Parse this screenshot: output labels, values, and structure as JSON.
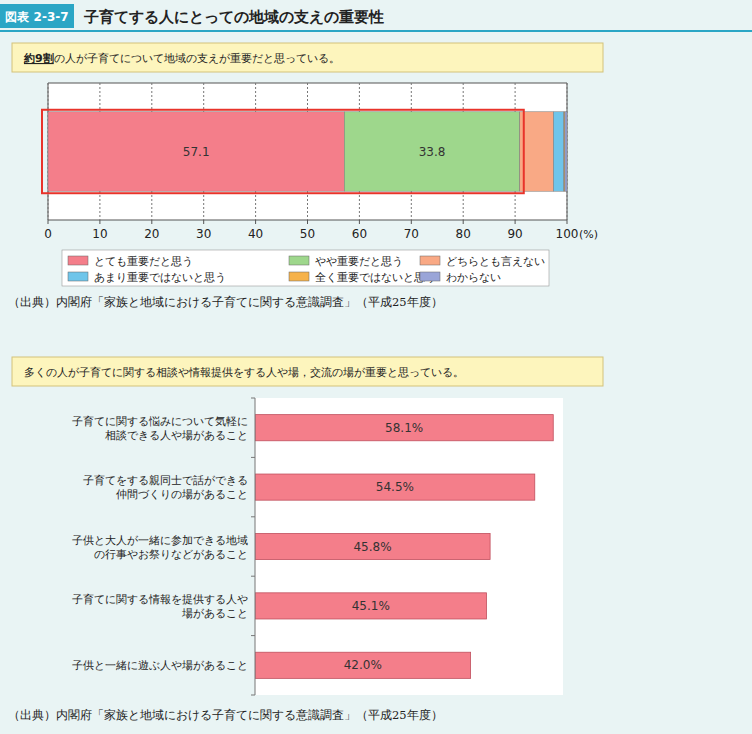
{
  "header": {
    "label": "図表 2-3-7",
    "title": "子育てする人にとっての地域の支えの重要性"
  },
  "chart_data": [
    {
      "type": "bar",
      "orientation": "horizontal",
      "stacked": true,
      "subtitle": "約9割の人が子育てについて地域の支えが重要だと思っている。",
      "categories": [
        null
      ],
      "series": [
        {
          "name": "とても重要だと思う",
          "color": "#f47e8a",
          "values": [
            57.1
          ],
          "data_labels": true
        },
        {
          "name": "やや重要だと思う",
          "color": "#9ed78c",
          "values": [
            33.8
          ],
          "data_labels": true
        },
        {
          "name": "どちらとも言えない",
          "color": "#f9a985",
          "values": [
            6.5
          ]
        },
        {
          "name": "あまり重要ではないと思う",
          "color": "#6fc5ea",
          "values": [
            2.0
          ]
        },
        {
          "name": "全く重要ではないと思う",
          "color": "#f6b24a",
          "values": [
            0.2
          ]
        },
        {
          "name": "わからない",
          "color": "#9aa5d8",
          "values": [
            0.4
          ]
        }
      ],
      "xlim": [
        0,
        100
      ],
      "xticks": [
        0,
        10,
        20,
        30,
        40,
        50,
        60,
        70,
        80,
        90,
        100
      ],
      "xlabel": "(%)",
      "grid": true,
      "legend": "bottom",
      "tick_labels": "x",
      "source": "（出典）内閣府「家族と地域における子育てに関する意識調査」（平成25年度）"
    },
    {
      "type": "bar",
      "orientation": "horizontal",
      "subtitle": "多くの人が子育てに関する相談や情報提供をする人や場，交流の場が重要と思っている。",
      "categories": [
        "子育てに関する悩みについて気軽に\n相談できる人や場があること",
        "子育てをする親同士で話ができる\n仲間づくりの場があること",
        "子供と大人が一緒に参加できる地域\nの行事やお祭りなどがあること",
        "子育てに関する情報を提供する人や\n場があること",
        "子供と一緒に遊ぶ人や場があること"
      ],
      "values": [
        58.1,
        54.5,
        45.8,
        45.1,
        42.0
      ],
      "value_labels": [
        "58.1%",
        "54.5%",
        "45.8%",
        "45.1%",
        "42.0%"
      ],
      "color": "#f47e8a",
      "xlim": [
        0,
        60
      ],
      "data_labels": true,
      "tick_labels": "y",
      "grid": false,
      "source": "（出典）内閣府「家族と地域における子育てに関する意識調査」（平成25年度）"
    }
  ]
}
